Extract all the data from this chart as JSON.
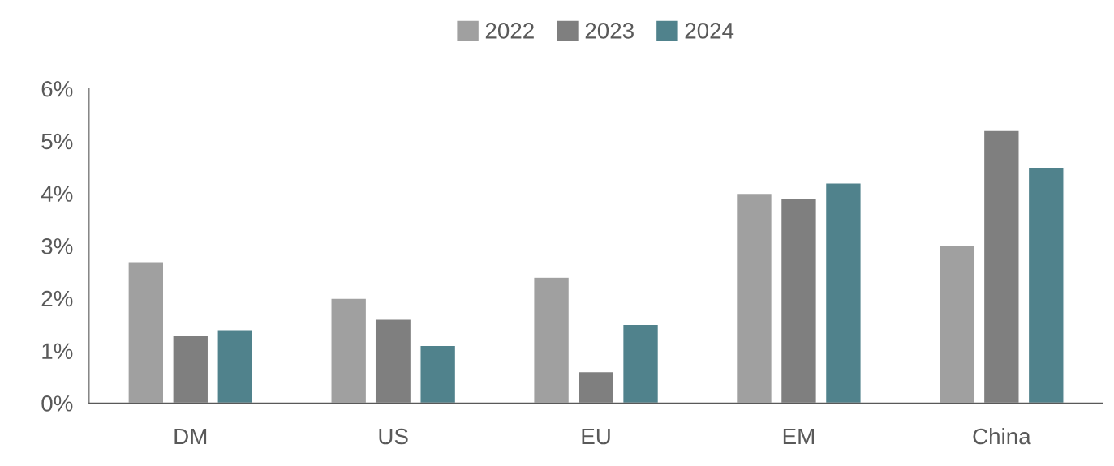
{
  "chart_data": {
    "type": "bar",
    "categories": [
      "DM",
      "US",
      "EU",
      "EM",
      "China"
    ],
    "series": [
      {
        "name": "2022",
        "color": "#a0a0a0",
        "values": [
          2.7,
          2.0,
          2.4,
          4.0,
          3.0
        ]
      },
      {
        "name": "2023",
        "color": "#7f7f7f",
        "values": [
          1.3,
          1.6,
          0.6,
          3.9,
          5.2
        ]
      },
      {
        "name": "2024",
        "color": "#50828c",
        "values": [
          1.4,
          1.1,
          1.5,
          4.2,
          4.5
        ]
      }
    ],
    "ylim": [
      0,
      6
    ],
    "yticks": [
      {
        "value": 0,
        "label": "0%"
      },
      {
        "value": 1,
        "label": "1%"
      },
      {
        "value": 2,
        "label": "2%"
      },
      {
        "value": 3,
        "label": "3%"
      },
      {
        "value": 4,
        "label": "4%"
      },
      {
        "value": 5,
        "label": "5%"
      },
      {
        "value": 6,
        "label": "6%"
      }
    ],
    "grid": false,
    "legend": "top"
  }
}
